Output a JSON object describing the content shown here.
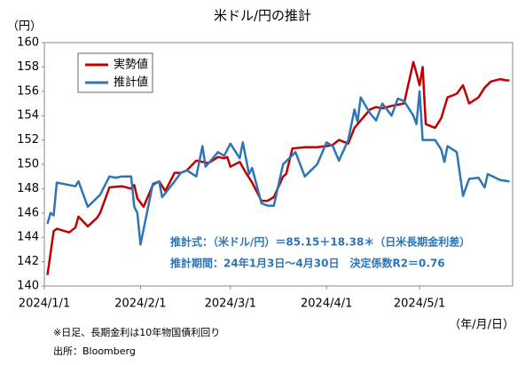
{
  "chart_data": {
    "type": "line",
    "title": "米ドル/円の推計",
    "y_label": "（円）",
    "x_label": "（年/月/日）",
    "annotations": [
      "推計式：（米ドル/円）＝85.15＋18.38＊（日米長期金利差）",
      "推計期間：24年1月3日～4月30日　決定係数R2＝0.76"
    ],
    "notes": [
      "※日足、長期金利は10年物国債利回り",
      "出所：Bloomberg"
    ],
    "xlim": [
      "2024/1/1",
      "2024/5/31"
    ],
    "xticks": [
      "2024/1/1",
      "2024/2/1",
      "2024/3/1",
      "2024/4/1",
      "2024/5/1"
    ],
    "ylim": [
      140,
      160
    ],
    "yticks": [
      140,
      142,
      144,
      146,
      148,
      150,
      152,
      154,
      156,
      158,
      160
    ],
    "series": [
      {
        "name": "実勢値",
        "color": "#c00000",
        "x": [
          "2024/1/2",
          "2024/1/4",
          "2024/1/5",
          "2024/1/9",
          "2024/1/11",
          "2024/1/12",
          "2024/1/15",
          "2024/1/18",
          "2024/1/19",
          "2024/1/22",
          "2024/1/26",
          "2024/1/29",
          "2024/1/30",
          "2024/1/31",
          "2024/2/2",
          "2024/2/5",
          "2024/2/7",
          "2024/2/9",
          "2024/2/12",
          "2024/2/14",
          "2024/2/16",
          "2024/2/19",
          "2024/2/21",
          "2024/2/23",
          "2024/2/26",
          "2024/2/28",
          "2024/2/29",
          "2024/3/1",
          "2024/3/4",
          "2024/3/6",
          "2024/3/8",
          "2024/3/11",
          "2024/3/13",
          "2024/3/15",
          "2024/3/18",
          "2024/3/19",
          "2024/3/21",
          "2024/3/25",
          "2024/3/27",
          "2024/3/29",
          "2024/4/1",
          "2024/4/3",
          "2024/4/5",
          "2024/4/8",
          "2024/4/10",
          "2024/4/12",
          "2024/4/15",
          "2024/4/17",
          "2024/4/19",
          "2024/4/22",
          "2024/4/24",
          "2024/4/26",
          "2024/4/29",
          "2024/4/30",
          "2024/5/1",
          "2024/5/2",
          "2024/5/3",
          "2024/5/6",
          "2024/5/8",
          "2024/5/10",
          "2024/5/13",
          "2024/5/15",
          "2024/5/17",
          "2024/5/20",
          "2024/5/22",
          "2024/5/24",
          "2024/5/27",
          "2024/5/29",
          "2024/5/30"
        ],
        "values": [
          140.9,
          144.5,
          144.7,
          144.4,
          144.8,
          145.7,
          144.9,
          145.6,
          146.0,
          148.1,
          148.2,
          148.0,
          148.3,
          147.2,
          146.5,
          148.3,
          148.6,
          147.8,
          149.3,
          149.3,
          149.5,
          150.3,
          150.2,
          150.1,
          150.6,
          150.5,
          150.6,
          149.8,
          150.2,
          149.3,
          148.5,
          147.0,
          147.0,
          147.3,
          149.0,
          149.2,
          151.3,
          151.4,
          151.4,
          151.4,
          151.5,
          151.6,
          152.0,
          151.7,
          153.0,
          153.6,
          154.5,
          154.7,
          154.6,
          154.8,
          154.9,
          155.0,
          158.4,
          157.5,
          156.5,
          158.0,
          153.3,
          153.0,
          153.8,
          155.5,
          155.8,
          156.5,
          155.0,
          155.5,
          156.3,
          156.8,
          157.0,
          156.9,
          156.9
        ]
      },
      {
        "name": "推計値",
        "color": "#2e75b6",
        "x": [
          "2024/1/2",
          "2024/1/3",
          "2024/1/4",
          "2024/1/5",
          "2024/1/9",
          "2024/1/11",
          "2024/1/12",
          "2024/1/15",
          "2024/1/17",
          "2024/1/19",
          "2024/1/22",
          "2024/1/24",
          "2024/1/26",
          "2024/1/29",
          "2024/1/30",
          "2024/1/31",
          "2024/2/1",
          "2024/2/5",
          "2024/2/7",
          "2024/2/8",
          "2024/2/12",
          "2024/2/14",
          "2024/2/16",
          "2024/2/19",
          "2024/2/21",
          "2024/2/22",
          "2024/2/26",
          "2024/2/28",
          "2024/3/1",
          "2024/3/4",
          "2024/3/5",
          "2024/3/7",
          "2024/3/8",
          "2024/3/11",
          "2024/3/13",
          "2024/3/15",
          "2024/3/18",
          "2024/3/20",
          "2024/3/22",
          "2024/3/25",
          "2024/3/27",
          "2024/3/29",
          "2024/4/1",
          "2024/4/3",
          "2024/4/5",
          "2024/4/8",
          "2024/4/10",
          "2024/4/11",
          "2024/4/12",
          "2024/4/15",
          "2024/4/17",
          "2024/4/19",
          "2024/4/22",
          "2024/4/24",
          "2024/4/26",
          "2024/4/29",
          "2024/4/30",
          "2024/5/1",
          "2024/5/2",
          "2024/5/6",
          "2024/5/8",
          "2024/5/9",
          "2024/5/10",
          "2024/5/13",
          "2024/5/15",
          "2024/5/17",
          "2024/5/20",
          "2024/5/22",
          "2024/5/23",
          "2024/5/27",
          "2024/5/30"
        ],
        "values": [
          145.1,
          146.0,
          145.8,
          148.5,
          148.3,
          148.2,
          148.6,
          146.5,
          147.0,
          147.5,
          149.0,
          148.9,
          149.0,
          149.0,
          146.5,
          146.0,
          143.4,
          148.4,
          148.6,
          147.3,
          148.6,
          149.3,
          149.5,
          149.0,
          151.5,
          149.8,
          151.0,
          150.7,
          151.7,
          150.5,
          151.8,
          149.2,
          149.7,
          146.8,
          146.6,
          146.6,
          150.0,
          150.5,
          151.0,
          149.0,
          149.5,
          150.0,
          151.8,
          151.5,
          150.3,
          152.0,
          154.5,
          153.5,
          155.5,
          154.2,
          153.6,
          155.0,
          154.0,
          155.4,
          155.2,
          154.0,
          153.3,
          156.0,
          152.0,
          152.0,
          151.2,
          150.2,
          151.5,
          151.0,
          147.4,
          148.8,
          148.9,
          148.1,
          149.2,
          148.7,
          148.6
        ]
      }
    ]
  }
}
